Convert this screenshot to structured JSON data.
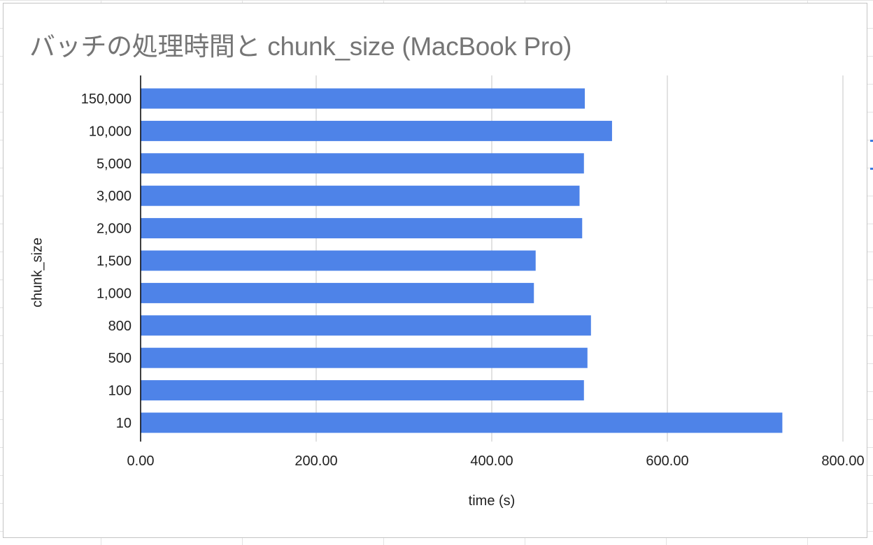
{
  "chart_data": {
    "type": "bar",
    "orientation": "horizontal",
    "title": "バッチの処理時間と chunk_size (MacBook Pro)",
    "xlabel": "time (s)",
    "ylabel": "chunk_size",
    "categories": [
      "150,000",
      "10,000",
      "5,000",
      "3,000",
      "2,000",
      "1,500",
      "1,000",
      "800",
      "500",
      "100",
      "10"
    ],
    "values": [
      506,
      537,
      505,
      500,
      503,
      450,
      448,
      513,
      509,
      505,
      731
    ],
    "xlim": [
      0,
      800
    ],
    "x_ticks": [
      "0.00",
      "200.00",
      "400.00",
      "600.00",
      "800.00"
    ],
    "x_tick_values": [
      0,
      200,
      400,
      600,
      800
    ],
    "grid": true,
    "legend": "none",
    "bar_color": "#4e83e8",
    "grid_color": "#cfcfcf",
    "axis_color": "#000000",
    "title_color": "#757575"
  }
}
